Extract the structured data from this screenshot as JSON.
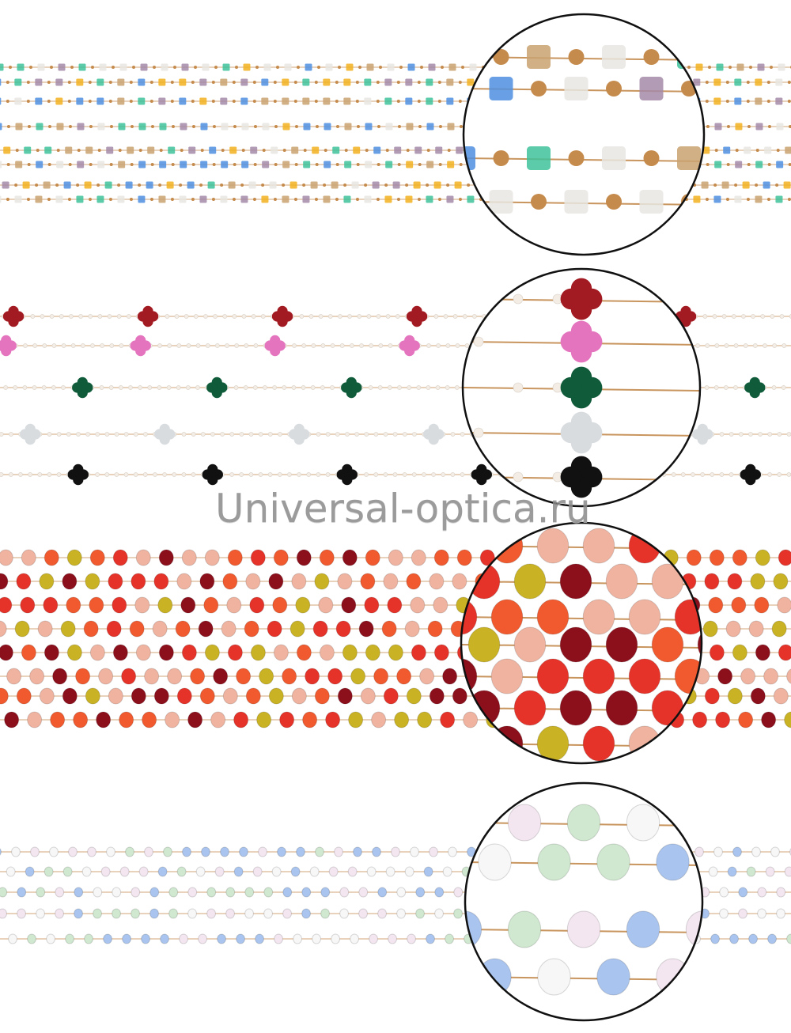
{
  "watermark": "Universal-optica.ru",
  "panels": [
    {
      "name": "glass-cube-bead-chains",
      "bead": "cube",
      "colors": [
        "#4f8fe0",
        "#3ec29a",
        "#f2b01e",
        "#a48aa8",
        "#e8e6e2",
        "#c9a271"
      ]
    },
    {
      "name": "enamel-clover-pearl-chains",
      "bead": "clover",
      "colors": [
        "#a31b22",
        "#e374bd",
        "#0f5b3a",
        "#d8dcdf",
        "#111111"
      ]
    },
    {
      "name": "red-yellow-crystal-bead-chains",
      "bead": "rondelle",
      "colors": [
        "#e5332a",
        "#c9b223",
        "#8c0f1c",
        "#f0b3a0",
        "#f05a2e"
      ]
    },
    {
      "name": "pastel-crystal-bead-chains",
      "bead": "rondelle-small",
      "colors": [
        "#a9c4ee",
        "#cfe8cf",
        "#f4e6f0",
        "#f7f7f7"
      ]
    }
  ]
}
